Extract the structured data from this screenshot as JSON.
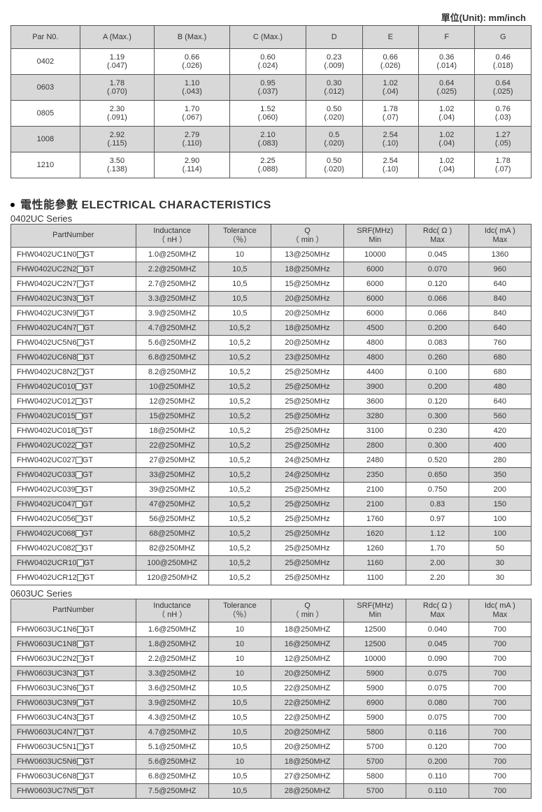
{
  "unit_label": "單位(Unit): mm/inch",
  "dim_headers": [
    "Par N0.",
    "A (Max.)",
    "B (Max.)",
    "C (Max.)",
    "D",
    "E",
    "F",
    "G"
  ],
  "dim_rows": [
    {
      "shade": false,
      "pn": "0402",
      "vals": [
        [
          "1.19",
          "(.047)"
        ],
        [
          "0.66",
          "(.026)"
        ],
        [
          "0.60",
          "(.024)"
        ],
        [
          "0.23",
          "(.009)"
        ],
        [
          "0.66",
          "(.026)"
        ],
        [
          "0.36",
          "(.014)"
        ],
        [
          "0.46",
          "(.018)"
        ]
      ]
    },
    {
      "shade": true,
      "pn": "0603",
      "vals": [
        [
          "1.78",
          "(.070)"
        ],
        [
          "1.10",
          "(.043)"
        ],
        [
          "0.95",
          "(.037)"
        ],
        [
          "0.30",
          "(.012)"
        ],
        [
          "1.02",
          "(.04)"
        ],
        [
          "0.64",
          "(.025)"
        ],
        [
          "0.64",
          "(.025)"
        ]
      ]
    },
    {
      "shade": false,
      "pn": "0805",
      "vals": [
        [
          "2.30",
          "(.091)"
        ],
        [
          "1.70",
          "(.067)"
        ],
        [
          "1.52",
          "(.060)"
        ],
        [
          "0.50",
          "(.020)"
        ],
        [
          "1.78",
          "(.07)"
        ],
        [
          "1.02",
          "(.04)"
        ],
        [
          "0.76",
          "(.03)"
        ]
      ]
    },
    {
      "shade": true,
      "pn": "1008",
      "vals": [
        [
          "2.92",
          "(.115)"
        ],
        [
          "2.79",
          "(.110)"
        ],
        [
          "2.10",
          "(.083)"
        ],
        [
          "0.5",
          "(.020)"
        ],
        [
          "2.54",
          "(.10)"
        ],
        [
          "1.02",
          "(.04)"
        ],
        [
          "1.27",
          "(.05)"
        ]
      ]
    },
    {
      "shade": false,
      "pn": "1210",
      "vals": [
        [
          "3.50",
          "(.138)"
        ],
        [
          "2.90",
          "(.114)"
        ],
        [
          "2.25",
          "(.088)"
        ],
        [
          "0.50",
          "(.020)"
        ],
        [
          "2.54",
          "(.10)"
        ],
        [
          "1.02",
          "(.04)"
        ],
        [
          "1.78",
          "(.07)"
        ]
      ]
    }
  ],
  "section_title": "電性能參數 ELECTRICAL CHARACTERISTICS",
  "elec_headers": [
    "PartNumber",
    "Inductance\n（ nH ）",
    "Tolerance\n（％）",
    "Q\n（ min ）",
    "SRF(MHz)\nMin",
    "Rdc( Ω )\nMax",
    "Idc( mA )\nMax"
  ],
  "series": [
    {
      "label": "0402UC Series",
      "rows": [
        {
          "shade": false,
          "pn": [
            "FHW0402UC1N0",
            "GT"
          ],
          "ind": "1.0@250MHZ",
          "tol": "10",
          "q": "13@250MHz",
          "srf": "10000",
          "rdc": "0.045",
          "idc": "1360"
        },
        {
          "shade": true,
          "pn": [
            "FHW0402UC2N2",
            "GT"
          ],
          "ind": "2.2@250MHZ",
          "tol": "10,5",
          "q": "18@250MHz",
          "srf": "6000",
          "rdc": "0.070",
          "idc": "960"
        },
        {
          "shade": false,
          "pn": [
            "FHW0402UC2N7",
            "GT"
          ],
          "ind": "2.7@250MHZ",
          "tol": "10,5",
          "q": "15@250MHz",
          "srf": "6000",
          "rdc": "0.120",
          "idc": "640"
        },
        {
          "shade": true,
          "pn": [
            "FHW0402UC3N3",
            "GT"
          ],
          "ind": "3.3@250MHZ",
          "tol": "10,5",
          "q": "20@250MHz",
          "srf": "6000",
          "rdc": "0.066",
          "idc": "840"
        },
        {
          "shade": false,
          "pn": [
            "FHW0402UC3N9",
            "GT"
          ],
          "ind": "3.9@250MHZ",
          "tol": "10,5",
          "q": "20@250MHz",
          "srf": "6000",
          "rdc": "0.066",
          "idc": "840"
        },
        {
          "shade": true,
          "pn": [
            "FHW0402UC4N7",
            "GT"
          ],
          "ind": "4.7@250MHZ",
          "tol": "10,5,2",
          "q": "18@250MHz",
          "srf": "4500",
          "rdc": "0.200",
          "idc": "640"
        },
        {
          "shade": false,
          "pn": [
            "FHW0402UC5N6",
            "GT"
          ],
          "ind": "5.6@250MHZ",
          "tol": "10,5,2",
          "q": "20@250MHz",
          "srf": "4800",
          "rdc": "0.083",
          "idc": "760"
        },
        {
          "shade": true,
          "pn": [
            "FHW0402UC6N8",
            "GT"
          ],
          "ind": "6.8@250MHZ",
          "tol": "10,5,2",
          "q": "23@250MHz",
          "srf": "4800",
          "rdc": "0.260",
          "idc": "680"
        },
        {
          "shade": false,
          "pn": [
            "FHW0402UC8N2",
            "GT"
          ],
          "ind": "8.2@250MHZ",
          "tol": "10,5,2",
          "q": "25@250MHz",
          "srf": "4400",
          "rdc": "0.100",
          "idc": "680"
        },
        {
          "shade": true,
          "pn": [
            "FHW0402UC010",
            "GT"
          ],
          "ind": "10@250MHZ",
          "tol": "10,5,2",
          "q": "25@250MHz",
          "srf": "3900",
          "rdc": "0.200",
          "idc": "480"
        },
        {
          "shade": false,
          "pn": [
            "FHW0402UC012",
            "GT"
          ],
          "ind": "12@250MHZ",
          "tol": "10,5,2",
          "q": "25@250MHz",
          "srf": "3600",
          "rdc": "0.120",
          "idc": "640"
        },
        {
          "shade": true,
          "pn": [
            "FHW0402UC015",
            "GT"
          ],
          "ind": "15@250MHZ",
          "tol": "10,5,2",
          "q": "25@250MHz",
          "srf": "3280",
          "rdc": "0.300",
          "idc": "560"
        },
        {
          "shade": false,
          "pn": [
            "FHW0402UC018",
            "GT"
          ],
          "ind": "18@250MHZ",
          "tol": "10,5,2",
          "q": "25@250MHz",
          "srf": "3100",
          "rdc": "0.230",
          "idc": "420"
        },
        {
          "shade": true,
          "pn": [
            "FHW0402UC022",
            "GT"
          ],
          "ind": "22@250MHZ",
          "tol": "10,5,2",
          "q": "25@250MHz",
          "srf": "2800",
          "rdc": "0.300",
          "idc": "400"
        },
        {
          "shade": false,
          "pn": [
            "FHW0402UC027",
            "GT"
          ],
          "ind": "27@250MHZ",
          "tol": "10,5,2",
          "q": "24@250MHz",
          "srf": "2480",
          "rdc": "0.520",
          "idc": "280"
        },
        {
          "shade": true,
          "pn": [
            "FHW0402UC033",
            "GT"
          ],
          "ind": "33@250MHZ",
          "tol": "10,5,2",
          "q": "24@250MHz",
          "srf": "2350",
          "rdc": "0.650",
          "idc": "350"
        },
        {
          "shade": false,
          "pn": [
            "FHW0402UC039",
            "GT"
          ],
          "ind": "39@250MHZ",
          "tol": "10,5,2",
          "q": "25@250MHz",
          "srf": "2100",
          "rdc": "0.750",
          "idc": "200"
        },
        {
          "shade": true,
          "pn": [
            "FHW0402UC047",
            "GT"
          ],
          "ind": "47@250MHZ",
          "tol": "10,5,2",
          "q": "25@250MHz",
          "srf": "2100",
          "rdc": "0.83",
          "idc": "150"
        },
        {
          "shade": false,
          "pn": [
            "FHW0402UC056",
            "GT"
          ],
          "ind": "56@250MHZ",
          "tol": "10,5,2",
          "q": "25@250MHz",
          "srf": "1760",
          "rdc": "0.97",
          "idc": "100"
        },
        {
          "shade": true,
          "pn": [
            "FHW0402UC068",
            "GT"
          ],
          "ind": "68@250MHZ",
          "tol": "10,5,2",
          "q": "25@250MHz",
          "srf": "1620",
          "rdc": "1.12",
          "idc": "100"
        },
        {
          "shade": false,
          "pn": [
            "FHW0402UC082",
            "GT"
          ],
          "ind": "82@250MHZ",
          "tol": "10,5,2",
          "q": "25@250MHz",
          "srf": "1260",
          "rdc": "1.70",
          "idc": "50"
        },
        {
          "shade": true,
          "pn": [
            "FHW0402UCR10",
            "GT"
          ],
          "ind": "100@250MHZ",
          "tol": "10,5,2",
          "q": "25@250MHz",
          "srf": "1160",
          "rdc": "2.00",
          "idc": "30"
        },
        {
          "shade": false,
          "pn": [
            "FHW0402UCR12",
            "GT"
          ],
          "ind": "120@250MHZ",
          "tol": "10,5,2",
          "q": "25@250MHz",
          "srf": "1100",
          "rdc": "2.20",
          "idc": "30"
        }
      ]
    },
    {
      "label": "0603UC Series",
      "rows": [
        {
          "shade": false,
          "pn": [
            "FHW0603UC1N6",
            "GT"
          ],
          "ind": "1.6@250MHZ",
          "tol": "10",
          "q": "18@250MHZ",
          "srf": "12500",
          "rdc": "0.040",
          "idc": "700"
        },
        {
          "shade": true,
          "pn": [
            "FHW0603UC1N8",
            "GT"
          ],
          "ind": "1.8@250MHZ",
          "tol": "10",
          "q": "16@250MHZ",
          "srf": "12500",
          "rdc": "0.045",
          "idc": "700"
        },
        {
          "shade": false,
          "pn": [
            "FHW0603UC2N2",
            "GT"
          ],
          "ind": "2.2@250MHZ",
          "tol": "10",
          "q": "12@250MHZ",
          "srf": "10000",
          "rdc": "0.090",
          "idc": "700"
        },
        {
          "shade": true,
          "pn": [
            "FHW0603UC3N3",
            "GT"
          ],
          "ind": "3.3@250MHZ",
          "tol": "10",
          "q": "20@250MHZ",
          "srf": "5900",
          "rdc": "0.075",
          "idc": "700"
        },
        {
          "shade": false,
          "pn": [
            "FHW0603UC3N6",
            "GT"
          ],
          "ind": "3.6@250MHZ",
          "tol": "10,5",
          "q": "22@250MHZ",
          "srf": "5900",
          "rdc": "0.075",
          "idc": "700"
        },
        {
          "shade": true,
          "pn": [
            "FHW0603UC3N9",
            "GT"
          ],
          "ind": "3.9@250MHZ",
          "tol": "10,5",
          "q": "22@250MHZ",
          "srf": "6900",
          "rdc": "0.080",
          "idc": "700"
        },
        {
          "shade": false,
          "pn": [
            "FHW0603UC4N3",
            "GT"
          ],
          "ind": "4.3@250MHZ",
          "tol": "10,5",
          "q": "22@250MHZ",
          "srf": "5900",
          "rdc": "0.075",
          "idc": "700"
        },
        {
          "shade": true,
          "pn": [
            "FHW0603UC4N7",
            "GT"
          ],
          "ind": "4.7@250MHZ",
          "tol": "10,5",
          "q": "20@250MHZ",
          "srf": "5800",
          "rdc": "0.116",
          "idc": "700"
        },
        {
          "shade": false,
          "pn": [
            "FHW0603UC5N1",
            "GT"
          ],
          "ind": "5.1@250MHZ",
          "tol": "10,5",
          "q": "20@250MHZ",
          "srf": "5700",
          "rdc": "0.120",
          "idc": "700"
        },
        {
          "shade": true,
          "pn": [
            "FHW0603UC5N6",
            "GT"
          ],
          "ind": "5.6@250MHZ",
          "tol": "10",
          "q": "18@250MHZ",
          "srf": "5700",
          "rdc": "0.200",
          "idc": "700"
        },
        {
          "shade": false,
          "pn": [
            "FHW0603UC6N8",
            "GT"
          ],
          "ind": "6.8@250MHZ",
          "tol": "10,5",
          "q": "27@250MHZ",
          "srf": "5800",
          "rdc": "0.110",
          "idc": "700"
        },
        {
          "shade": true,
          "pn": [
            "FHW0603UC7N5",
            "GT"
          ],
          "ind": "7.5@250MHZ",
          "tol": "10,5",
          "q": "28@250MHZ",
          "srf": "5700",
          "rdc": "0.110",
          "idc": "700"
        }
      ]
    }
  ]
}
